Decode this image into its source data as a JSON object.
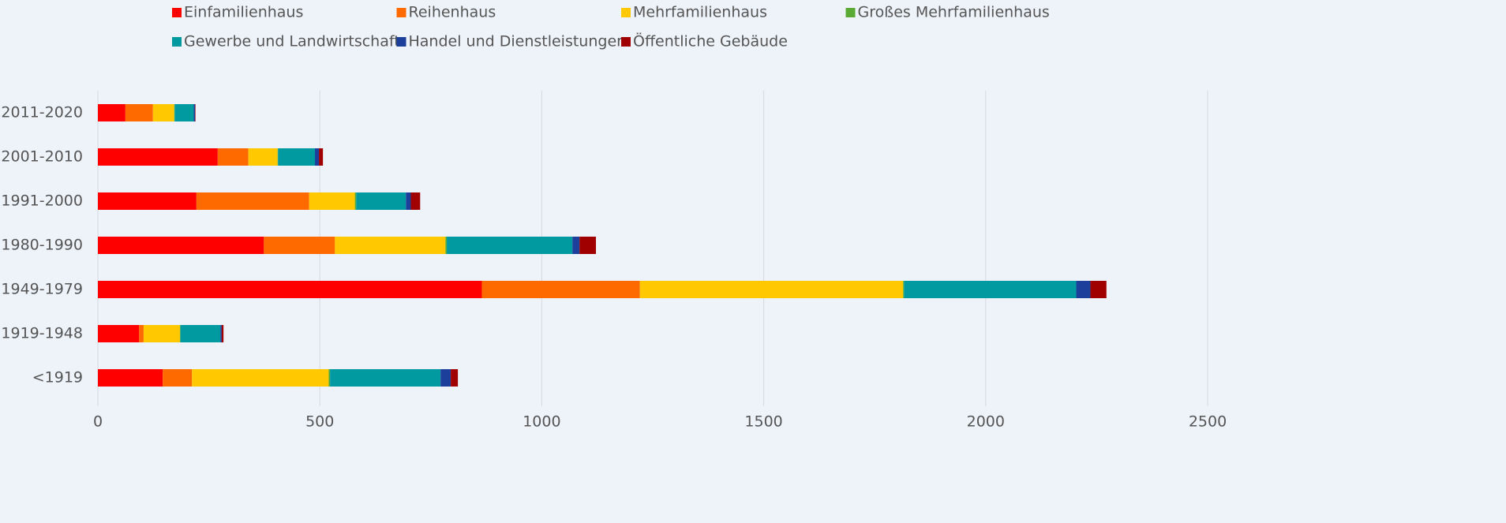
{
  "chart_data": {
    "type": "stacked-barh",
    "categories": [
      "2011-2020",
      "2001-2010",
      "1991-2000",
      "1980-1990",
      "1949-1979",
      "1919-1948",
      "<1919"
    ],
    "series": [
      {
        "name": "Einfamilienhaus",
        "color": "#ff0000",
        "values": [
          62,
          270,
          222,
          374,
          865,
          93,
          146
        ]
      },
      {
        "name": "Reihenhaus",
        "color": "#ff6a00",
        "values": [
          62,
          69,
          254,
          160,
          356,
          10,
          66
        ]
      },
      {
        "name": "Mehrfamilienhaus",
        "color": "#ffc800",
        "values": [
          48,
          66,
          103,
          249,
          593,
          82,
          308
        ]
      },
      {
        "name": "Großes Mehrfamilienhaus",
        "color": "#5aab33",
        "values": [
          1,
          1,
          3,
          3,
          2,
          1,
          3
        ]
      },
      {
        "name": "Gewerbe und Landwirtschaft",
        "color": "#009aa0",
        "values": [
          43,
          83,
          112,
          283,
          388,
          90,
          249
        ]
      },
      {
        "name": "Handel und Dienstleistungen",
        "color": "#1b3f9a",
        "values": [
          3,
          9,
          11,
          16,
          32,
          3,
          23
        ]
      },
      {
        "name": "Öffentliche Gebäude",
        "color": "#a00000",
        "values": [
          1,
          9,
          21,
          37,
          36,
          4,
          16
        ]
      }
    ],
    "xlim": [
      0,
      2500
    ],
    "xticks": [
      0,
      500,
      1000,
      1500,
      2000,
      2500
    ],
    "grid": true
  }
}
